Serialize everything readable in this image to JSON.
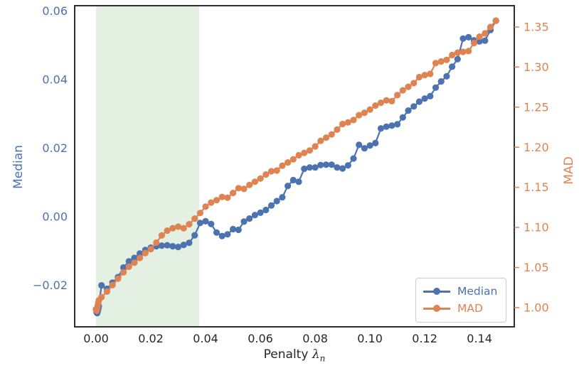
{
  "chart_data": {
    "type": "line",
    "title": "",
    "xlabel": "Penalty λₙ",
    "xlabel_parts": {
      "prefix": "Penalty ",
      "symbol": "λ",
      "subscript": "n"
    },
    "ylabel_left": "Median",
    "ylabel_right": "MAD",
    "xlim": [
      -0.0078,
      0.1527
    ],
    "ylim_left": [
      -0.0321,
      0.0616
    ],
    "ylim_right": [
      0.976,
      1.3766
    ],
    "x_ticks": [
      0.0,
      0.02,
      0.04,
      0.06,
      0.08,
      0.1,
      0.12,
      0.14
    ],
    "y_left_ticks": [
      -0.02,
      0.0,
      0.02,
      0.04,
      0.06
    ],
    "y_right_ticks": [
      1.0,
      1.05,
      1.1,
      1.15,
      1.2,
      1.25,
      1.3,
      1.35
    ],
    "grid": false,
    "shaded_region": {
      "x0": 0.0,
      "x1": 0.0377,
      "color": "#e4f0e2"
    },
    "colors": {
      "median": "#4C72B0",
      "mad": "#DD8452",
      "spine": "#2e2e2e",
      "x_tick_label": "#262626",
      "legend_border": "#cccccc"
    },
    "x": [
      0,
      0.0002,
      0.0004,
      0.0006,
      0.0008,
      0.001,
      0.002,
      0.004,
      0.006,
      0.008,
      0.01,
      0.012,
      0.014,
      0.016,
      0.018,
      0.02,
      0.022,
      0.024,
      0.026,
      0.028,
      0.03,
      0.032,
      0.034,
      0.036,
      0.038,
      0.04,
      0.042,
      0.044,
      0.046,
      0.048,
      0.05,
      0.052,
      0.054,
      0.056,
      0.058,
      0.06,
      0.062,
      0.064,
      0.066,
      0.068,
      0.07,
      0.072,
      0.074,
      0.076,
      0.078,
      0.08,
      0.082,
      0.084,
      0.086,
      0.088,
      0.09,
      0.092,
      0.094,
      0.096,
      0.098,
      0.1,
      0.102,
      0.104,
      0.106,
      0.108,
      0.11,
      0.112,
      0.114,
      0.116,
      0.118,
      0.12,
      0.122,
      0.124,
      0.126,
      0.128,
      0.13,
      0.132,
      0.134,
      0.136,
      0.138,
      0.14,
      0.142,
      0.144,
      0.146
    ],
    "series": [
      {
        "name": "Median",
        "axis": "left",
        "color": "#4C72B0",
        "values": [
          -0.027,
          -0.0279,
          -0.0281,
          -0.0276,
          -0.0269,
          -0.0261,
          -0.02,
          -0.021,
          -0.0192,
          -0.0176,
          -0.0148,
          -0.013,
          -0.012,
          -0.0107,
          -0.0097,
          -0.009,
          -0.0086,
          -0.0084,
          -0.0083,
          -0.0086,
          -0.0088,
          -0.0082,
          -0.0076,
          -0.0054,
          -0.0018,
          -0.0013,
          -0.0021,
          -0.0046,
          -0.0056,
          -0.0051,
          -0.0036,
          -0.0038,
          -0.0014,
          -0.0005,
          0.0005,
          0.0012,
          0.002,
          0.0033,
          0.0046,
          0.0057,
          0.009,
          0.0107,
          0.0102,
          0.014,
          0.0144,
          0.0144,
          0.0151,
          0.0152,
          0.0152,
          0.0144,
          0.0141,
          0.015,
          0.017,
          0.021,
          0.02,
          0.0208,
          0.0215,
          0.0258,
          0.0263,
          0.0266,
          0.027,
          0.029,
          0.031,
          0.0322,
          0.0336,
          0.0345,
          0.0352,
          0.0377,
          0.0395,
          0.041,
          0.0438,
          0.046,
          0.052,
          0.0524,
          0.0515,
          0.0512,
          0.0514,
          0.0545,
          0.0572
        ]
      },
      {
        "name": "MAD",
        "axis": "right",
        "color": "#DD8452",
        "values": [
          0.998,
          0.996,
          0.999,
          1.002,
          1.006,
          1.009,
          1.013,
          1.02,
          1.028,
          1.036,
          1.044,
          1.051,
          1.056,
          1.062,
          1.068,
          1.073,
          1.081,
          1.09,
          1.096,
          1.099,
          1.101,
          1.099,
          1.104,
          1.111,
          1.118,
          1.126,
          1.131,
          1.134,
          1.138,
          1.137,
          1.143,
          1.149,
          1.148,
          1.153,
          1.157,
          1.161,
          1.166,
          1.17,
          1.171,
          1.177,
          1.181,
          1.185,
          1.19,
          1.193,
          1.196,
          1.201,
          1.208,
          1.212,
          1.216,
          1.222,
          1.229,
          1.231,
          1.234,
          1.24,
          1.243,
          1.247,
          1.252,
          1.2555,
          1.2585,
          1.2575,
          1.265,
          1.271,
          1.2755,
          1.28,
          1.2875,
          1.29,
          1.2915,
          1.305,
          1.307,
          1.309,
          1.315,
          1.318,
          1.319,
          1.32,
          1.33,
          1.338,
          1.342,
          1.35,
          1.358
        ]
      }
    ],
    "legend": {
      "position": "lower right",
      "entries": [
        "Median",
        "MAD"
      ]
    }
  }
}
